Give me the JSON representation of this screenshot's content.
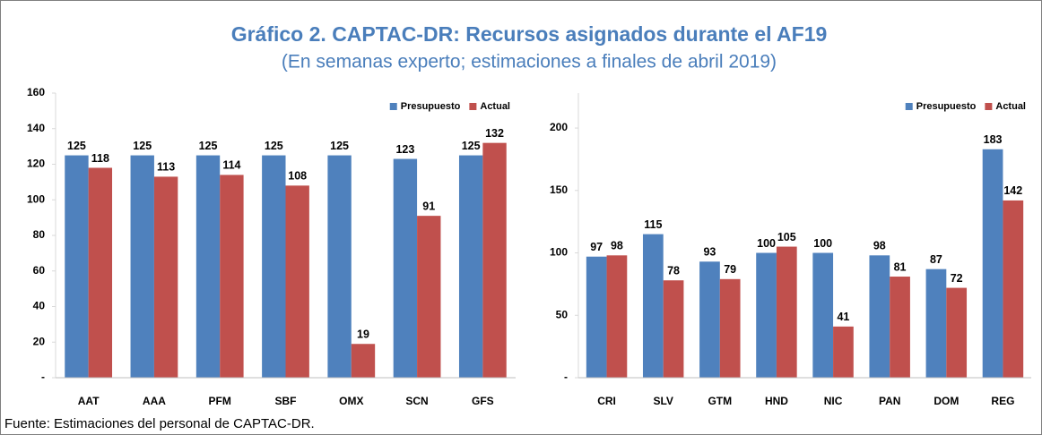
{
  "title": "Gráfico 2. CAPTAC-DR: Recursos asignados durante el AF19",
  "subtitle": "(En semanas experto; estimaciones a finales de abril 2019)",
  "source": "Fuente: Estimaciones del personal de CAPTAC-DR.",
  "chart_data": [
    {
      "type": "bar",
      "categories": [
        "AAT",
        "AAA",
        "PFM",
        "SBF",
        "OMX",
        "SCN",
        "GFS"
      ],
      "series": [
        {
          "name": "Presupuesto",
          "color": "#4f81bd",
          "values": [
            125,
            125,
            125,
            125,
            125,
            123,
            125
          ]
        },
        {
          "name": "Actual",
          "color": "#c0504d",
          "values": [
            118,
            113,
            114,
            108,
            19,
            91,
            132
          ]
        }
      ],
      "ylim": [
        0,
        160
      ],
      "yticks": [
        {
          "value": 0,
          "label": "-"
        },
        20,
        40,
        60,
        80,
        100,
        120,
        140,
        160
      ],
      "legend": "top-right",
      "grid": false
    },
    {
      "type": "bar",
      "categories": [
        "CRI",
        "SLV",
        "GTM",
        "HND",
        "NIC",
        "PAN",
        "DOM",
        "REG"
      ],
      "series": [
        {
          "name": "Presupuesto",
          "color": "#4f81bd",
          "values": [
            97,
            115,
            93,
            100,
            100,
            98,
            87,
            183
          ]
        },
        {
          "name": "Actual",
          "color": "#c0504d",
          "values": [
            98,
            78,
            79,
            105,
            41,
            81,
            72,
            142
          ]
        }
      ],
      "ylim": [
        0,
        228
      ],
      "yticks": [
        {
          "value": 0,
          "label": "-"
        },
        50,
        100,
        150,
        200
      ],
      "legend": "top-right",
      "grid": false
    }
  ]
}
